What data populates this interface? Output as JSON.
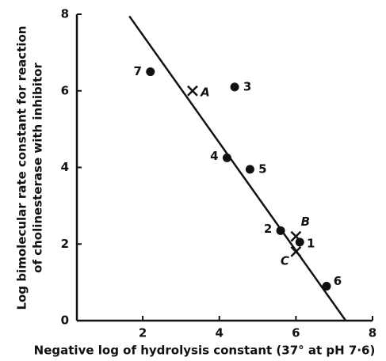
{
  "chart_data": {
    "type": "scatter",
    "x_label": "Negative log of hydrolysis constant (37° at pH 7·6)",
    "y_label": [
      "Log bimolecular rate constant for reaction",
      "of cholinesterase with inhibitor"
    ],
    "xlim": [
      0.28,
      8
    ],
    "ylim": [
      0,
      8
    ],
    "xticks": [
      2,
      4,
      6,
      8
    ],
    "yticks": [
      0,
      2,
      4,
      6,
      8
    ],
    "points": {
      "labels": [
        "7",
        "3",
        "4",
        "5",
        "2",
        "1",
        "6"
      ],
      "x": [
        2.2,
        4.4,
        4.2,
        4.8,
        5.6,
        6.1,
        6.8
      ],
      "y": [
        6.5,
        6.1,
        4.25,
        3.95,
        2.35,
        2.05,
        0.9
      ]
    },
    "crosses": {
      "labels": [
        "A",
        "B",
        "C"
      ],
      "x": [
        3.3,
        6.0,
        6.0
      ],
      "y": [
        6.0,
        2.2,
        1.8
      ]
    },
    "line": {
      "x": [
        1.65,
        7.3
      ],
      "y": [
        7.95,
        0
      ]
    },
    "color": "#111111"
  }
}
